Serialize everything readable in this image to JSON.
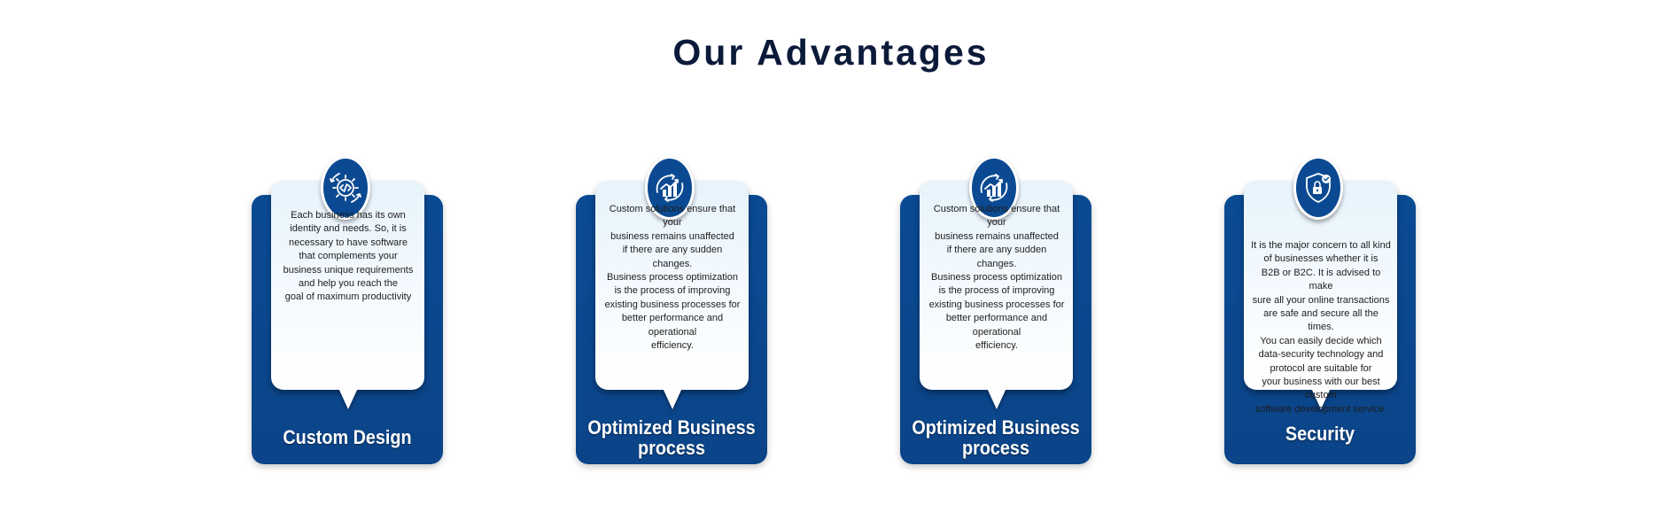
{
  "page": {
    "title": "Our Advantages"
  },
  "colors": {
    "title": "#0c1a3a",
    "card_blue": "#0a4a93",
    "badge_blue": "#0b4a92",
    "panel": "#eef7fd"
  },
  "cards": [
    {
      "icon": "gear-code-icon",
      "description": "Each business has its own\nidentity and needs. So, it is\nnecessary to have software\nthat complements your\nbusiness unique requirements\nand help you reach the\ngoal of maximum productivity",
      "label": "Custom Design"
    },
    {
      "icon": "chart-growth-icon",
      "description": "Custom solutions ensure that your\nbusiness remains unaffected\nif there are any sudden changes.\nBusiness process optimization\nis the process of improving\nexisting business processes for\nbetter performance and operational\nefficiency.",
      "label": "Optimized Business\nprocess"
    },
    {
      "icon": "chart-growth-icon",
      "description": "Custom solutions ensure that your\nbusiness remains unaffected\nif there are any sudden changes.\nBusiness process optimization\nis the process of improving\nexisting business processes for\nbetter performance and operational\nefficiency.",
      "label": "Optimized Business\nprocess"
    },
    {
      "icon": "shield-lock-icon",
      "description": "It is the major concern to all kind\nof businesses whether it is\nB2B or B2C. It is advised to make\nsure all your online transactions\nare safe and secure all the times.\nYou can easily decide which\ndata-security technology and\nprotocol are suitable for\nyour business with our best custom\nsoftware development service.",
      "label": "Security"
    }
  ]
}
